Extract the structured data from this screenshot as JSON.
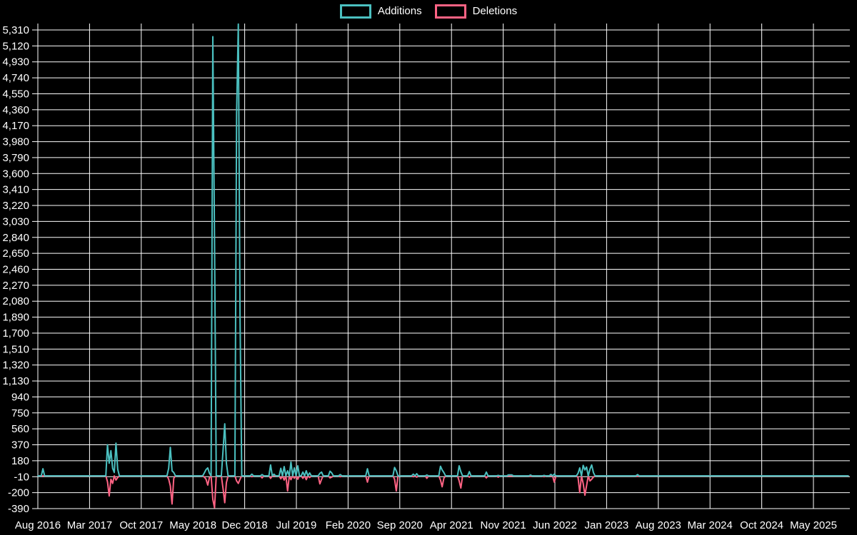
{
  "page": {
    "background": "#000000",
    "grid_color": "#ffffff",
    "text_color": "#ffffff"
  },
  "legend": {
    "position": "top-center",
    "items": [
      {
        "label": "Additions",
        "color": "#4BC0C0"
      },
      {
        "label": "Deletions",
        "color": "#FF6384"
      }
    ]
  },
  "chart_data": {
    "type": "line",
    "title": "",
    "xlabel": "",
    "ylabel": "",
    "grid": true,
    "legend_position": "top",
    "y_axis": {
      "min": -390,
      "max": 5310,
      "step": 190,
      "tick_values": [
        -390,
        -200,
        -10,
        180,
        370,
        560,
        750,
        940,
        1130,
        1320,
        1510,
        1700,
        1890,
        2080,
        2270,
        2460,
        2650,
        2840,
        3030,
        3220,
        3410,
        3600,
        3790,
        3980,
        4170,
        4360,
        4550,
        4740,
        4930,
        5120,
        5310
      ]
    },
    "x_axis": {
      "tick_labels": [
        "Aug 2016",
        "Mar 2017",
        "Oct 2017",
        "May 2018",
        "Dec 2018",
        "Jul 2019",
        "Feb 2020",
        "Sep 2020",
        "Apr 2021",
        "Nov 2021",
        "Jun 2022",
        "Jan 2023",
        "Aug 2023",
        "Mar 2024",
        "Oct 2024",
        "May 2025"
      ],
      "months_per_tick": 7,
      "weeks_total": 478
    },
    "series": [
      {
        "name": "Additions",
        "color": "#4BC0C0",
        "baseline": 0,
        "events": [
          [
            3,
            85
          ],
          [
            41,
            370
          ],
          [
            42,
            150
          ],
          [
            43,
            300
          ],
          [
            44,
            90
          ],
          [
            45,
            40
          ],
          [
            46,
            390
          ],
          [
            47,
            80
          ],
          [
            77,
            90
          ],
          [
            78,
            340
          ],
          [
            79,
            60
          ],
          [
            80,
            40
          ],
          [
            98,
            35
          ],
          [
            99,
            75
          ],
          [
            100,
            95
          ],
          [
            101,
            30
          ],
          [
            103,
            5230
          ],
          [
            104,
            2790
          ],
          [
            109,
            300
          ],
          [
            110,
            620
          ],
          [
            111,
            150
          ],
          [
            117,
            4310
          ],
          [
            118,
            5380
          ],
          [
            119,
            1900
          ],
          [
            126,
            20
          ],
          [
            132,
            15
          ],
          [
            137,
            130
          ],
          [
            139,
            20
          ],
          [
            143,
            90
          ],
          [
            145,
            110
          ],
          [
            147,
            60
          ],
          [
            149,
            165
          ],
          [
            151,
            95
          ],
          [
            153,
            120
          ],
          [
            156,
            45
          ],
          [
            158,
            60
          ],
          [
            160,
            35
          ],
          [
            166,
            30
          ],
          [
            167,
            45
          ],
          [
            172,
            55
          ],
          [
            173,
            35
          ],
          [
            178,
            15
          ],
          [
            194,
            85
          ],
          [
            210,
            100
          ],
          [
            211,
            60
          ],
          [
            221,
            20
          ],
          [
            223,
            25
          ],
          [
            229,
            10
          ],
          [
            237,
            115
          ],
          [
            238,
            70
          ],
          [
            239,
            40
          ],
          [
            248,
            120
          ],
          [
            249,
            50
          ],
          [
            254,
            50
          ],
          [
            264,
            45
          ],
          [
            271,
            5
          ],
          [
            277,
            12
          ],
          [
            278,
            12
          ],
          [
            279,
            12
          ],
          [
            290,
            10
          ],
          [
            298,
            5
          ],
          [
            302,
            18
          ],
          [
            304,
            20
          ],
          [
            318,
            30
          ],
          [
            319,
            95
          ],
          [
            321,
            125
          ],
          [
            322,
            70
          ],
          [
            323,
            105
          ],
          [
            325,
            80
          ],
          [
            326,
            130
          ],
          [
            327,
            40
          ],
          [
            353,
            15
          ]
        ]
      },
      {
        "name": "Deletions",
        "color": "#FF6384",
        "baseline": 0,
        "events": [
          [
            41,
            -70
          ],
          [
            42,
            -240
          ],
          [
            43,
            -40
          ],
          [
            44,
            -90
          ],
          [
            46,
            -50
          ],
          [
            47,
            -20
          ],
          [
            77,
            -40
          ],
          [
            78,
            -120
          ],
          [
            79,
            -335
          ],
          [
            80,
            -30
          ],
          [
            98,
            -15
          ],
          [
            99,
            -40
          ],
          [
            100,
            -110
          ],
          [
            101,
            -20
          ],
          [
            103,
            -280
          ],
          [
            104,
            -380
          ],
          [
            109,
            -150
          ],
          [
            110,
            -320
          ],
          [
            111,
            -80
          ],
          [
            117,
            -60
          ],
          [
            118,
            -90
          ],
          [
            119,
            -40
          ],
          [
            126,
            -10
          ],
          [
            132,
            -25
          ],
          [
            137,
            -30
          ],
          [
            143,
            -35
          ],
          [
            145,
            -50
          ],
          [
            147,
            -180
          ],
          [
            149,
            -45
          ],
          [
            151,
            -30
          ],
          [
            153,
            -40
          ],
          [
            156,
            -30
          ],
          [
            158,
            -45
          ],
          [
            160,
            -20
          ],
          [
            166,
            -95
          ],
          [
            167,
            -40
          ],
          [
            172,
            -25
          ],
          [
            173,
            -15
          ],
          [
            178,
            -10
          ],
          [
            194,
            -75
          ],
          [
            210,
            -40
          ],
          [
            211,
            -180
          ],
          [
            221,
            -10
          ],
          [
            223,
            -15
          ],
          [
            229,
            -30
          ],
          [
            237,
            -50
          ],
          [
            238,
            -130
          ],
          [
            239,
            -30
          ],
          [
            248,
            -60
          ],
          [
            249,
            -145
          ],
          [
            254,
            -15
          ],
          [
            264,
            -25
          ],
          [
            271,
            -15
          ],
          [
            290,
            -5
          ],
          [
            298,
            -10
          ],
          [
            304,
            -75
          ],
          [
            318,
            -20
          ],
          [
            319,
            -200
          ],
          [
            321,
            -90
          ],
          [
            322,
            -230
          ],
          [
            323,
            -120
          ],
          [
            325,
            -60
          ],
          [
            326,
            -40
          ],
          [
            327,
            -15
          ],
          [
            353,
            -5
          ]
        ]
      }
    ]
  }
}
